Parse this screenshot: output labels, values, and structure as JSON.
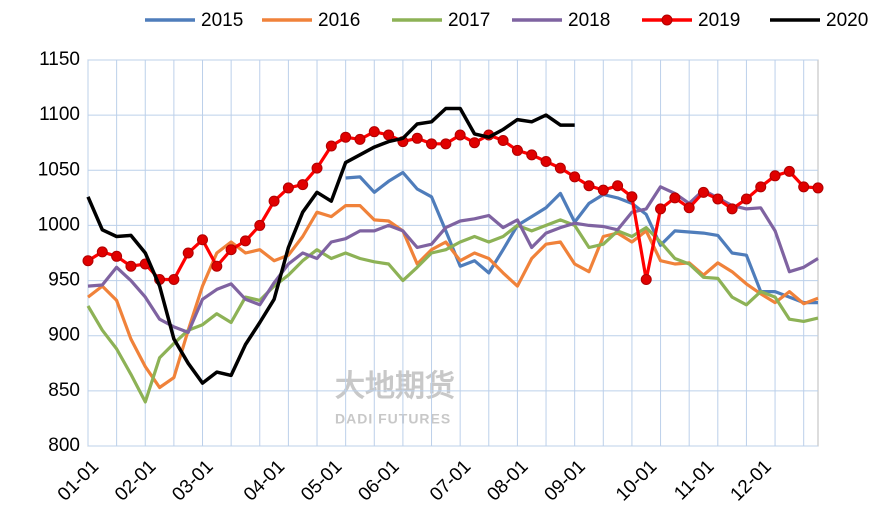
{
  "chart_data": {
    "type": "line",
    "categories": [
      "01-01",
      null,
      null,
      null,
      "02-01",
      null,
      null,
      null,
      "03-01",
      null,
      null,
      null,
      null,
      "04-01",
      null,
      null,
      null,
      "05-01",
      null,
      null,
      null,
      "06-01",
      null,
      null,
      null,
      null,
      "07-01",
      null,
      null,
      null,
      "08-01",
      null,
      null,
      null,
      "09-01",
      null,
      null,
      null,
      null,
      "10-01",
      null,
      null,
      null,
      "11-01",
      null,
      null,
      null,
      "12-01",
      null,
      null,
      null,
      null
    ],
    "series": [
      {
        "name": "2015",
        "color": "#4f7dbb",
        "values": [
          null,
          null,
          null,
          null,
          null,
          null,
          null,
          null,
          null,
          null,
          null,
          null,
          null,
          null,
          null,
          null,
          null,
          null,
          1043,
          1044,
          1030,
          1040,
          1048,
          1033,
          1026,
          995,
          963,
          968,
          957,
          978,
          1000,
          1008,
          1016,
          1029,
          1003,
          1020,
          1028,
          1025,
          1020,
          1010,
          982,
          995,
          994,
          993,
          991,
          975,
          973,
          940,
          940,
          935,
          930,
          930
        ]
      },
      {
        "name": "2016",
        "color": "#f0823a",
        "values": [
          935,
          945,
          932,
          897,
          872,
          853,
          862,
          905,
          945,
          975,
          985,
          975,
          978,
          968,
          973,
          990,
          1012,
          1008,
          1018,
          1018,
          1005,
          1004,
          995,
          965,
          978,
          985,
          968,
          975,
          970,
          957,
          945,
          970,
          983,
          985,
          965,
          958,
          990,
          993,
          985,
          995,
          968,
          965,
          966,
          955,
          966,
          958,
          947,
          938,
          930,
          940,
          929,
          934
        ]
      },
      {
        "name": "2017",
        "color": "#8db256",
        "values": [
          927,
          905,
          888,
          865,
          840,
          880,
          893,
          905,
          910,
          920,
          912,
          935,
          932,
          945,
          955,
          968,
          978,
          970,
          975,
          970,
          967,
          965,
          950,
          962,
          975,
          978,
          985,
          990,
          985,
          990,
          1000,
          995,
          1000,
          1005,
          1000,
          980,
          983,
          995,
          990,
          998,
          985,
          970,
          965,
          953,
          952,
          935,
          928,
          940,
          935,
          915,
          913,
          916
        ]
      },
      {
        "name": "2018",
        "color": "#7f63a1",
        "values": [
          945,
          946,
          962,
          950,
          935,
          915,
          908,
          903,
          933,
          942,
          947,
          933,
          928,
          948,
          965,
          975,
          970,
          985,
          988,
          995,
          995,
          1000,
          995,
          980,
          983,
          998,
          1004,
          1006,
          1009,
          998,
          1005,
          980,
          993,
          998,
          1002,
          1000,
          999,
          996,
          1012,
          1015,
          1035,
          1029,
          1020,
          1032,
          1025,
          1018,
          1015,
          1016,
          995,
          958,
          962,
          970
        ]
      },
      {
        "name": "2019",
        "color": "#ff0000",
        "markers": true,
        "values": [
          968,
          976,
          972,
          963,
          965,
          951,
          951,
          975,
          987,
          963,
          978,
          986,
          1000,
          1022,
          1034,
          1037,
          1052,
          1072,
          1080,
          1078,
          1085,
          1082,
          1076,
          1079,
          1074,
          1074,
          1082,
          1075,
          1082,
          1077,
          1068,
          1064,
          1058,
          1052,
          1044,
          1036,
          1032,
          1036,
          1026,
          951,
          1015,
          1025,
          1016,
          1030,
          1024,
          1015,
          1024,
          1035,
          1045,
          1049,
          1035,
          1034
        ]
      },
      {
        "name": "2020",
        "color": "#000000",
        "values": [
          1026,
          996,
          990,
          991,
          975,
          945,
          897,
          875,
          857,
          867,
          864,
          892,
          912,
          933,
          980,
          1012,
          1030,
          1022,
          1057,
          1064,
          1071,
          1076,
          1079,
          1092,
          1094,
          1106,
          1106,
          1083,
          1080,
          1087,
          1096,
          1094,
          1100,
          1091,
          1091,
          null,
          null,
          null,
          null,
          null,
          null,
          null,
          null,
          null,
          null,
          null,
          null,
          null,
          null,
          null,
          null,
          null
        ]
      }
    ],
    "ylim": [
      800,
      1150
    ],
    "yticks": [
      800,
      850,
      900,
      950,
      1000,
      1050,
      1100,
      1150
    ],
    "grid": true,
    "legend": "top",
    "watermark": [
      "大地期货",
      "DADI FUTURES"
    ]
  }
}
